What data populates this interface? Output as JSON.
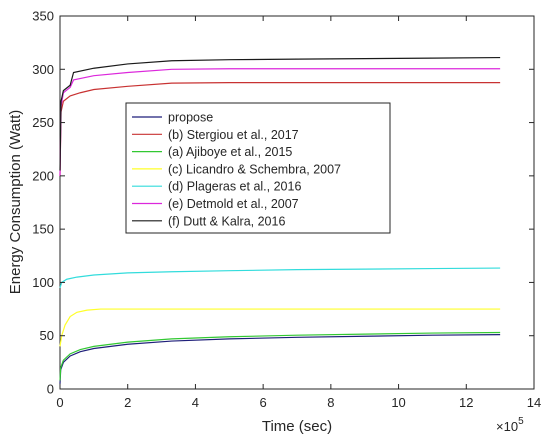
{
  "chart_data": {
    "type": "line",
    "title": "",
    "xlabel": "Time (sec)",
    "ylabel": "Energy Consumption (Watt)",
    "x_multiplier_label": "×10",
    "x_multiplier_exponent": "5",
    "xlim": [
      0,
      14
    ],
    "ylim": [
      0,
      350
    ],
    "xticks": [
      "0",
      "2",
      "4",
      "6",
      "8",
      "10",
      "12",
      "14"
    ],
    "yticks": [
      "0",
      "50",
      "100",
      "150",
      "200",
      "250",
      "300",
      "350"
    ],
    "grid": false,
    "legend_placement": "center-left",
    "x_units_note": "x values in units of 10^5 sec",
    "series": [
      {
        "name": "propose",
        "color": "#1f1f7a",
        "x": [
          0,
          0.02,
          0.1,
          0.3,
          0.6,
          1,
          2,
          3.3,
          5,
          7,
          9,
          11,
          13
        ],
        "y": [
          5,
          18,
          25,
          31,
          35,
          38,
          42,
          45,
          47,
          48.5,
          49.5,
          50.5,
          51
        ]
      },
      {
        "name": "(b) Stergiou et al., 2017",
        "color": "#c83232",
        "x": [
          0,
          0.03,
          0.1,
          0.3,
          0.6,
          1,
          2,
          3.3,
          5,
          7,
          9,
          11,
          13
        ],
        "y": [
          200,
          260,
          270,
          275,
          278,
          281,
          284,
          287,
          287.5,
          287.5,
          287.5,
          287.5,
          287.5
        ]
      },
      {
        "name": "(a) Ajiboye et al., 2015",
        "color": "#32c832",
        "x": [
          0,
          0.02,
          0.1,
          0.3,
          0.6,
          1,
          2,
          3.3,
          5,
          7,
          9,
          11,
          13
        ],
        "y": [
          8,
          20,
          27,
          33,
          37,
          40,
          44,
          47,
          49,
          50.5,
          51.5,
          52.5,
          53
        ]
      },
      {
        "name": "(c) Licandro & Schembra, 2007",
        "color": "#ffff28",
        "x": [
          0,
          0.05,
          0.15,
          0.3,
          0.5,
          0.8,
          1.2,
          2,
          4,
          6,
          8,
          10,
          13
        ],
        "y": [
          40,
          50,
          60,
          68,
          72,
          74,
          75,
          75,
          75,
          75,
          75,
          75,
          75
        ]
      },
      {
        "name": "(d) Plageras et al., 2016",
        "color": "#32dcdc",
        "x": [
          0,
          0.05,
          0.2,
          0.5,
          1,
          2,
          3.3,
          5,
          7,
          9,
          11,
          13
        ],
        "y": [
          95,
          100,
          103,
          105,
          107,
          109,
          110,
          111,
          112,
          112.5,
          113,
          113.5
        ]
      },
      {
        "name": "(e) Detmold et al., 2007",
        "color": "#dc28dc",
        "x": [
          0,
          0.03,
          0.1,
          0.3,
          0.4,
          1,
          2,
          3.3,
          5,
          7,
          9,
          11,
          13
        ],
        "y": [
          200,
          265,
          278,
          283,
          290,
          294,
          297,
          300,
          300.5,
          300.5,
          300.5,
          300.5,
          300.5
        ]
      },
      {
        "name": "(f) Dutt & Kalra, 2016",
        "color": "#1a1a1a",
        "x": [
          0,
          0.03,
          0.1,
          0.3,
          0.4,
          1,
          2,
          3.3,
          5,
          7,
          9,
          11,
          13
        ],
        "y": [
          205,
          270,
          280,
          285,
          297,
          301,
          305,
          308,
          309,
          309.5,
          310,
          310.5,
          311
        ]
      }
    ]
  }
}
